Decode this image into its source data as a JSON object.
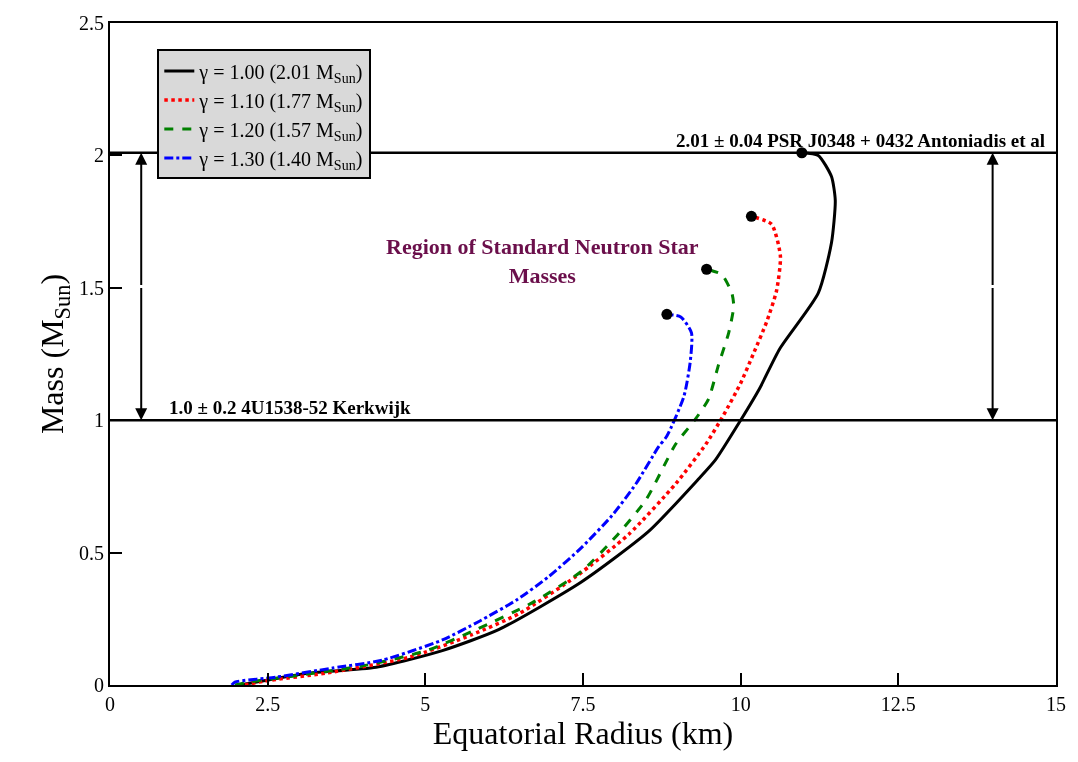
{
  "chart_data": {
    "type": "line",
    "xlabel": "Equatorial Radius (km)",
    "ylabel": "Mass (M$_{Sun}$)",
    "xlim": [
      0,
      15
    ],
    "xticks": [
      0,
      2.5,
      5,
      7.5,
      10,
      12.5,
      15
    ],
    "ylim": [
      0,
      2.5
    ],
    "yticks": [
      0,
      0.5,
      1,
      1.5,
      2,
      2.5
    ],
    "legend": "top left",
    "marker": "none",
    "series": [
      {
        "name": "γ = 1.00 (2.01 M$_{Sun}$)",
        "color": "#000000",
        "line_style": "solid",
        "x": [
          2.06,
          2.53,
          3.16,
          4.22,
          5.27,
          6.17,
          7.48,
          8.54,
          9.34,
          9.6,
          10.0,
          10.3,
          10.62,
          11.23,
          11.44,
          11.5,
          11.44,
          11.23,
          10.97
        ],
        "values": [
          0,
          0.02,
          0.045,
          0.067,
          0.13,
          0.21,
          0.39,
          0.58,
          0.78,
          0.85,
          1.0,
          1.12,
          1.27,
          1.48,
          1.67,
          1.83,
          1.92,
          2.0,
          2.01
        ]
      },
      {
        "name": "γ = 1.10 (1.77 M$_{Sun}$)",
        "color": "#ff0000",
        "line_style": "dotted",
        "x": [
          2.14,
          2.45,
          3.43,
          4.75,
          5.74,
          6.49,
          7.39,
          8.23,
          8.97,
          9.45,
          9.73,
          10.0,
          10.2,
          10.41,
          10.57,
          10.63,
          10.49,
          10.17
        ],
        "values": [
          0,
          0.015,
          0.045,
          0.105,
          0.19,
          0.27,
          0.41,
          0.57,
          0.76,
          0.91,
          1.02,
          1.14,
          1.25,
          1.37,
          1.49,
          1.62,
          1.74,
          1.77
        ]
      },
      {
        "name": "γ = 1.20 (1.57 M$_{Sun}$)",
        "color": "#008000",
        "line_style": "dashed",
        "x": [
          1.98,
          2.17,
          3.0,
          4.07,
          5.02,
          5.81,
          6.69,
          7.48,
          8.02,
          8.5,
          8.97,
          9.27,
          9.49,
          9.65,
          9.81,
          9.89,
          9.86,
          9.7,
          9.46
        ],
        "values": [
          0,
          0.01,
          0.037,
          0.075,
          0.13,
          0.21,
          0.31,
          0.43,
          0.56,
          0.7,
          0.91,
          1.0,
          1.08,
          1.21,
          1.33,
          1.43,
          1.48,
          1.55,
          1.57
        ]
      },
      {
        "name": "γ = 1.30 (1.40 M$_{Sun}$)",
        "color": "#0000ff",
        "line_style": "dashdot",
        "x": [
          1.93,
          1.98,
          2.64,
          3.53,
          4.32,
          5.27,
          5.85,
          6.44,
          6.96,
          7.48,
          7.96,
          8.34,
          8.7,
          8.83,
          9.1,
          9.2,
          9.22,
          9.05,
          8.83
        ],
        "values": [
          0,
          0.011,
          0.03,
          0.064,
          0.094,
          0.17,
          0.24,
          0.32,
          0.41,
          0.52,
          0.64,
          0.76,
          0.9,
          0.94,
          1.09,
          1.22,
          1.33,
          1.39,
          1.4
        ]
      },
      {
        "type": "scatter",
        "color": "#000000",
        "marker": "circle",
        "x": [
          10.97,
          10.17,
          9.46,
          8.83
        ],
        "values": [
          2.01,
          1.77,
          1.57,
          1.4
        ]
      }
    ],
    "ref_lines": [
      {
        "axis": "y",
        "value": 2.01,
        "label": "2.01 ± 0.04 PSR J0348 + 0432 Antoniadis et al",
        "color": "#000000",
        "line_style": "solid"
      },
      {
        "axis": "y",
        "value": 1.0,
        "label": "1.0 ± 0.2 4U1538-52 Kerkwijk",
        "color": "#000000",
        "line_style": "solid"
      }
    ],
    "annotations": [
      "Region of Standard Neutron Star Masses"
    ]
  }
}
